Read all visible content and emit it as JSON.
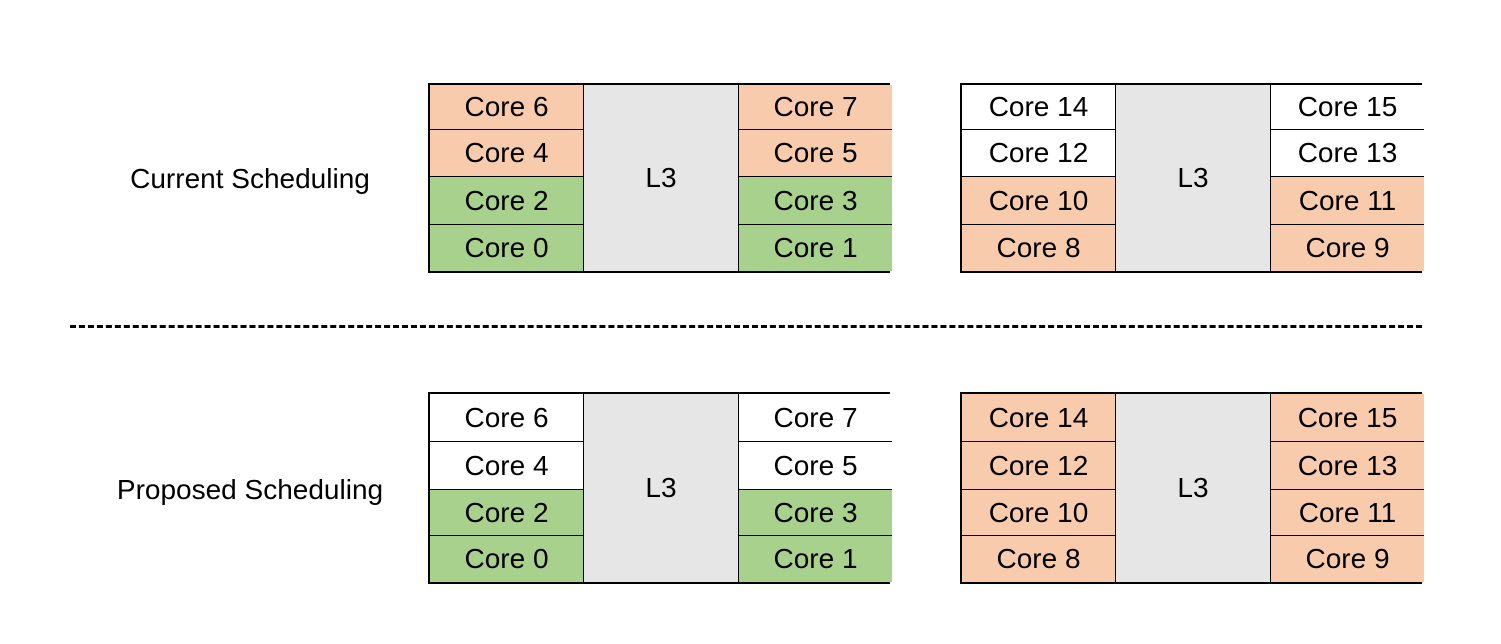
{
  "colors": {
    "orange": "#f8cbad",
    "green": "#a9d18e",
    "white": "#ffffff",
    "l3_gray": "#e6e6e6"
  },
  "rows": [
    {
      "label": "Current Scheduling",
      "blocks": [
        {
          "l3": "L3",
          "left": [
            {
              "label": "Core 6",
              "state": "orange"
            },
            {
              "label": "Core 4",
              "state": "orange"
            },
            {
              "label": "Core 2",
              "state": "green"
            },
            {
              "label": "Core 0",
              "state": "green"
            }
          ],
          "right": [
            {
              "label": "Core 7",
              "state": "orange"
            },
            {
              "label": "Core 5",
              "state": "orange"
            },
            {
              "label": "Core 3",
              "state": "green"
            },
            {
              "label": "Core 1",
              "state": "green"
            }
          ]
        },
        {
          "l3": "L3",
          "left": [
            {
              "label": "Core 14",
              "state": "white"
            },
            {
              "label": "Core 12",
              "state": "white"
            },
            {
              "label": "Core 10",
              "state": "orange"
            },
            {
              "label": "Core 8",
              "state": "orange"
            }
          ],
          "right": [
            {
              "label": "Core 15",
              "state": "white"
            },
            {
              "label": "Core 13",
              "state": "white"
            },
            {
              "label": "Core 11",
              "state": "orange"
            },
            {
              "label": "Core 9",
              "state": "orange"
            }
          ]
        }
      ]
    },
    {
      "label": "Proposed Scheduling",
      "blocks": [
        {
          "l3": "L3",
          "left": [
            {
              "label": "Core 6",
              "state": "white"
            },
            {
              "label": "Core 4",
              "state": "white"
            },
            {
              "label": "Core 2",
              "state": "green"
            },
            {
              "label": "Core 0",
              "state": "green"
            }
          ],
          "right": [
            {
              "label": "Core 7",
              "state": "white"
            },
            {
              "label": "Core 5",
              "state": "white"
            },
            {
              "label": "Core 3",
              "state": "green"
            },
            {
              "label": "Core 1",
              "state": "green"
            }
          ]
        },
        {
          "l3": "L3",
          "left": [
            {
              "label": "Core 14",
              "state": "orange"
            },
            {
              "label": "Core 12",
              "state": "orange"
            },
            {
              "label": "Core 10",
              "state": "orange"
            },
            {
              "label": "Core 8",
              "state": "orange"
            }
          ],
          "right": [
            {
              "label": "Core 15",
              "state": "orange"
            },
            {
              "label": "Core 13",
              "state": "orange"
            },
            {
              "label": "Core 11",
              "state": "orange"
            },
            {
              "label": "Core 9",
              "state": "orange"
            }
          ]
        }
      ]
    }
  ]
}
